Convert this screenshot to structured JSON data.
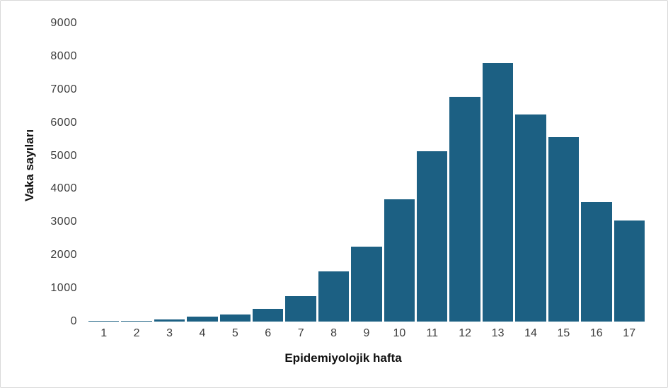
{
  "figure": {
    "background": "#ffffff",
    "border_color": "#d9d9d9"
  },
  "chart_data": {
    "type": "bar",
    "title": "",
    "xlabel": "Epidemiyolojik hafta",
    "ylabel": "Vaka sayıları",
    "categories": [
      "1",
      "2",
      "3",
      "4",
      "5",
      "6",
      "7",
      "8",
      "9",
      "10",
      "11",
      "12",
      "13",
      "14",
      "15",
      "16",
      "17"
    ],
    "values": [
      30,
      30,
      55,
      150,
      220,
      390,
      760,
      1520,
      2260,
      3690,
      5140,
      6780,
      7800,
      6250,
      5560,
      3600,
      3050
    ],
    "ylim": [
      0,
      9000
    ],
    "y_ticks": [
      0,
      1000,
      2000,
      3000,
      4000,
      5000,
      6000,
      7000,
      8000,
      9000
    ],
    "grid": false,
    "legend": "none",
    "bar_color": "#1C6083",
    "tick_label_color": "#3c3c3c",
    "axis_title_color": "#111111"
  }
}
